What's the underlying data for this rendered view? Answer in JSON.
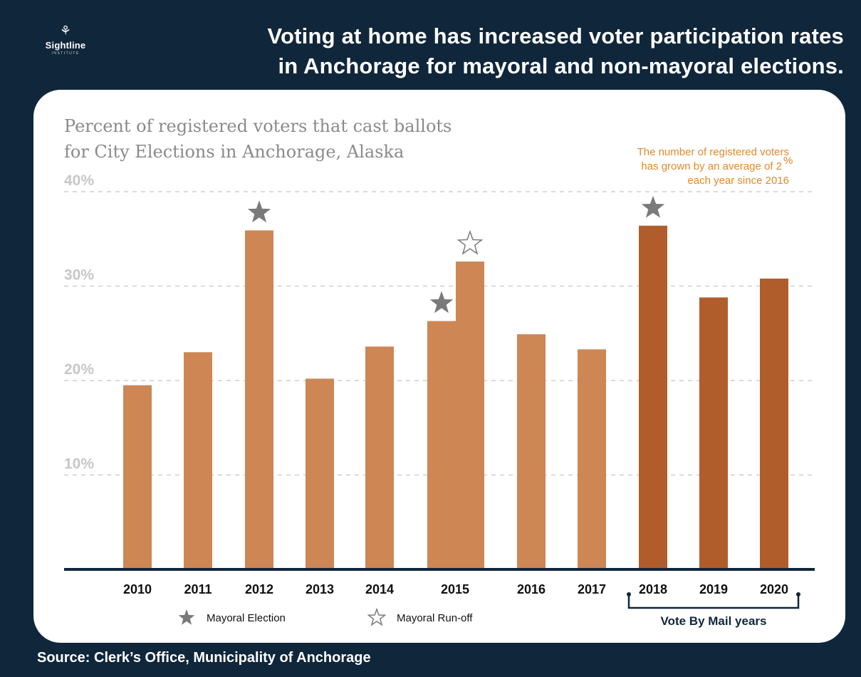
{
  "brand": {
    "name": "Sightline",
    "sub": "INSTITUTE"
  },
  "headline": {
    "line1": "Voting at home has increased voter participation rates",
    "line2": "in Anchorage for mayoral and non-mayoral elections."
  },
  "source": "Source: Clerk’s Office, Municipality of Anchorage",
  "annotation": {
    "line1": "The number of registered voters",
    "line2": "has grown by an average of 2",
    "line2_sup": "%",
    "line3": "each year since 2016"
  },
  "legend": {
    "mayoral": "Mayoral Election",
    "runoff": "Mayoral Run-off"
  },
  "vote_by_mail_label": "Vote By Mail years",
  "colors": {
    "background": "#10263b",
    "bar_light": "#cd8654",
    "bar_dark": "#b05d2b",
    "star": "#7a7a7a",
    "annotation": "#e08a2c"
  },
  "chart_data": {
    "type": "bar",
    "title": "Percent of registered voters that cast ballots for City Elections in Anchorage, Alaska",
    "title_line1": "Percent of registered voters that cast ballots",
    "title_line2": "for City Elections in Anchorage, Alaska",
    "ylim": [
      0,
      40
    ],
    "yticks": [
      10,
      20,
      30,
      40
    ],
    "ytick_labels": [
      "10%",
      "20%",
      "30%",
      "40%"
    ],
    "grid": true,
    "categories": [
      "2010",
      "2011",
      "2012",
      "2013",
      "2014",
      "2015",
      "2016",
      "2017",
      "2018",
      "2019",
      "2020"
    ],
    "bars": [
      {
        "category": "2010",
        "value": 19.5,
        "vote_by_mail": false,
        "marker": null
      },
      {
        "category": "2011",
        "value": 23.0,
        "vote_by_mail": false,
        "marker": null
      },
      {
        "category": "2012",
        "value": 35.9,
        "vote_by_mail": false,
        "marker": "Mayoral Election"
      },
      {
        "category": "2013",
        "value": 20.2,
        "vote_by_mail": false,
        "marker": null
      },
      {
        "category": "2014",
        "value": 23.6,
        "vote_by_mail": false,
        "marker": null
      },
      {
        "category": "2015",
        "value": 26.3,
        "vote_by_mail": false,
        "marker": "Mayoral Election"
      },
      {
        "category": "2015",
        "value": 32.6,
        "vote_by_mail": false,
        "marker": "Mayoral Run-off"
      },
      {
        "category": "2016",
        "value": 24.9,
        "vote_by_mail": false,
        "marker": null
      },
      {
        "category": "2017",
        "value": 23.3,
        "vote_by_mail": false,
        "marker": null
      },
      {
        "category": "2018",
        "value": 36.4,
        "vote_by_mail": true,
        "marker": "Mayoral Election"
      },
      {
        "category": "2019",
        "value": 28.8,
        "vote_by_mail": true,
        "marker": null
      },
      {
        "category": "2020",
        "value": 30.8,
        "vote_by_mail": true,
        "marker": null
      }
    ]
  }
}
